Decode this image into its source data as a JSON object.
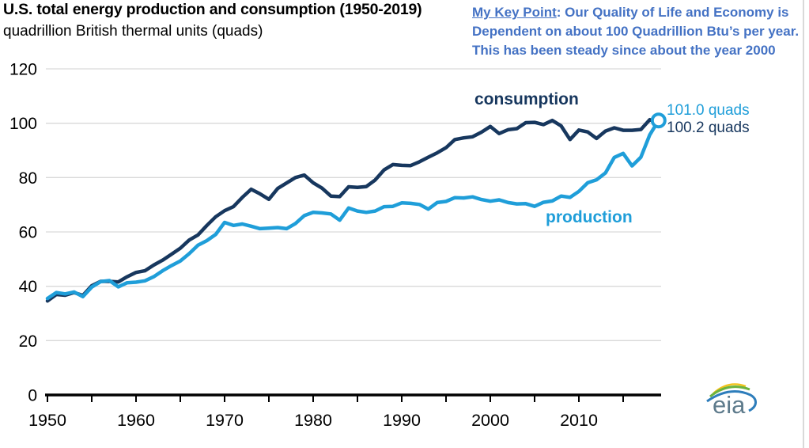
{
  "header": {
    "title": "U.S. total energy production and consumption (1950-2019)",
    "subtitle": "quadrillion British thermal units (quads)"
  },
  "keypoint": {
    "heading": "My Key Point",
    "body": ": Our Quality of Life and Economy is Dependent on about 100 Quadrillion Btu’s per year. This has been steady since about the year 2000",
    "color": "#4472C4"
  },
  "chart_data": {
    "type": "line",
    "title": "U.S. total energy production and consumption (1950-2019)",
    "ylabel": "quadrillion British thermal units (quads)",
    "xlabel": "",
    "ylim": [
      0,
      120
    ],
    "yticks": [
      0,
      20,
      40,
      60,
      80,
      100,
      120
    ],
    "xticks_labeled": [
      1950,
      1960,
      1970,
      1980,
      1990,
      2000,
      2010
    ],
    "xticks_minor_step": 5,
    "xticks_minor_last": 2015,
    "grid": "horizontal-light",
    "grid_color": "#D9D9D9",
    "x": [
      1950,
      1951,
      1952,
      1953,
      1954,
      1955,
      1956,
      1957,
      1958,
      1959,
      1960,
      1961,
      1962,
      1963,
      1964,
      1965,
      1966,
      1967,
      1968,
      1969,
      1970,
      1971,
      1972,
      1973,
      1974,
      1975,
      1976,
      1977,
      1978,
      1979,
      1980,
      1981,
      1982,
      1983,
      1984,
      1985,
      1986,
      1987,
      1988,
      1989,
      1990,
      1991,
      1992,
      1993,
      1994,
      1995,
      1996,
      1997,
      1998,
      1999,
      2000,
      2001,
      2002,
      2003,
      2004,
      2005,
      2006,
      2007,
      2008,
      2009,
      2010,
      2011,
      2012,
      2013,
      2014,
      2015,
      2016,
      2017,
      2018,
      2019
    ],
    "series": [
      {
        "name": "consumption",
        "color": "#17375E",
        "values": [
          34.6,
          37.0,
          36.7,
          37.7,
          36.6,
          40.2,
          41.8,
          41.8,
          41.6,
          43.5,
          45.1,
          45.7,
          47.8,
          49.6,
          51.8,
          54.0,
          57.0,
          58.9,
          62.4,
          65.6,
          67.8,
          69.3,
          72.7,
          75.7,
          74.0,
          72.0,
          76.0,
          78.0,
          80.0,
          80.9,
          78.1,
          76.1,
          73.2,
          73.0,
          76.6,
          76.4,
          76.7,
          79.1,
          82.8,
          84.8,
          84.5,
          84.4,
          85.8,
          87.5,
          89.1,
          91.0,
          94.0,
          94.6,
          95.0,
          96.7,
          98.8,
          96.2,
          97.6,
          98.0,
          100.2,
          100.3,
          99.5,
          101.0,
          99.0,
          94.0,
          97.5,
          96.8,
          94.4,
          97.1,
          98.3,
          97.4,
          97.4,
          97.7,
          101.3,
          100.2
        ]
      },
      {
        "name": "production",
        "color": "#1F9ED9",
        "end_marker": "open-circle",
        "values": [
          35.5,
          37.7,
          37.2,
          37.9,
          36.2,
          39.7,
          41.7,
          42.1,
          39.8,
          41.3,
          41.5,
          42.0,
          43.5,
          45.7,
          47.6,
          49.3,
          52.0,
          55.1,
          56.8,
          59.1,
          63.5,
          62.4,
          62.9,
          62.1,
          61.2,
          61.4,
          61.6,
          61.2,
          63.1,
          66.0,
          67.2,
          67.0,
          66.6,
          64.3,
          68.8,
          67.7,
          67.2,
          67.7,
          69.3,
          69.4,
          70.7,
          70.5,
          70.1,
          68.4,
          70.8,
          71.2,
          72.6,
          72.5,
          72.9,
          71.9,
          71.3,
          71.8,
          70.8,
          70.3,
          70.4,
          69.4,
          70.9,
          71.4,
          73.2,
          72.7,
          74.9,
          78.1,
          79.2,
          81.7,
          87.4,
          88.9,
          84.3,
          87.5,
          95.7,
          101.0
        ]
      }
    ],
    "annotations": [
      {
        "text": "101.0 quads",
        "series": "production",
        "color": "#1F9ED9"
      },
      {
        "text": "100.2 quads",
        "series": "consumption",
        "color": "#17375E"
      }
    ],
    "legend_position": "inline-labels"
  },
  "logo": {
    "text": "eia"
  }
}
